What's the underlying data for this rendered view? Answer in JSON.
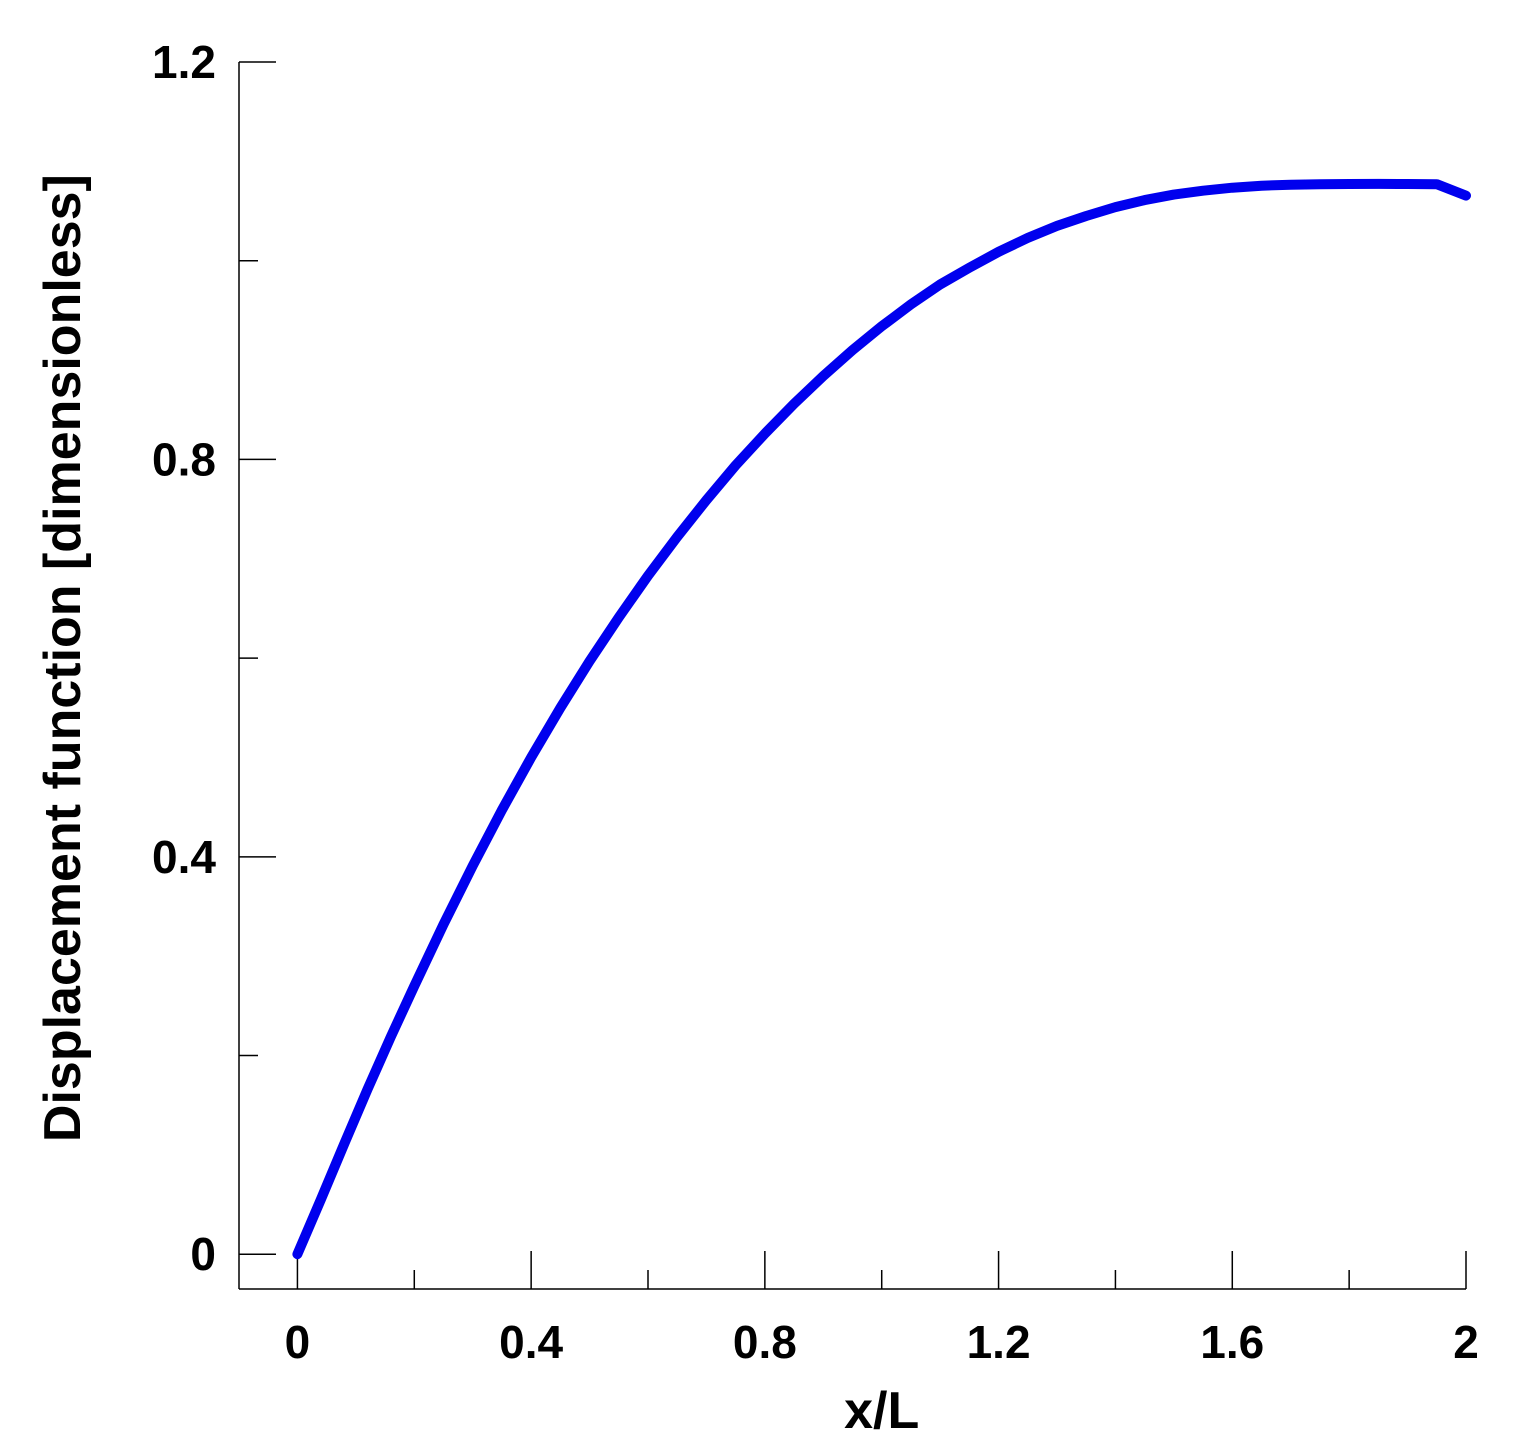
{
  "chart_data": {
    "type": "line",
    "title": "",
    "xlabel": "x/L",
    "ylabel": "Displacement function [dimensionless]",
    "xlim": [
      -0.1,
      2
    ],
    "ylim": [
      -0.035,
      1.2
    ],
    "x_ticks": [
      0,
      0.4,
      0.8,
      1.2,
      1.6,
      2
    ],
    "x_tick_labels": [
      "0",
      "0.4",
      "0.8",
      "1.2",
      "1.6",
      "2"
    ],
    "x_minor_ticks": [
      0.2,
      0.6,
      1.0,
      1.4,
      1.8
    ],
    "y_ticks": [
      0,
      0.4,
      0.8,
      1.2
    ],
    "y_tick_labels": [
      "0",
      "0.4",
      "0.8",
      "1.2"
    ],
    "y_minor_ticks": [
      0.2,
      0.6,
      1.0
    ],
    "grid": false,
    "legend": "none",
    "colors": {
      "series": "#0000ee",
      "axis": "#000000",
      "background": "#ffffff"
    },
    "series": [
      {
        "x": [
          0,
          0.04,
          0.08,
          0.12,
          0.16,
          0.2,
          0.25,
          0.3,
          0.35,
          0.4,
          0.45,
          0.5,
          0.55,
          0.6,
          0.65,
          0.7,
          0.75,
          0.8,
          0.85,
          0.9,
          0.95,
          1.0,
          1.05,
          1.1,
          1.15,
          1.2,
          1.25,
          1.3,
          1.35,
          1.4,
          1.45,
          1.5,
          1.55,
          1.6,
          1.65,
          1.7,
          1.75,
          1.8,
          1.85,
          1.9,
          1.95,
          2.0
        ],
        "y": [
          0,
          0.055,
          0.111,
          0.166,
          0.219,
          0.27,
          0.332,
          0.391,
          0.447,
          0.5,
          0.55,
          0.597,
          0.641,
          0.683,
          0.722,
          0.759,
          0.794,
          0.826,
          0.856,
          0.884,
          0.91,
          0.934,
          0.956,
          0.976,
          0.993,
          1.009,
          1.023,
          1.035,
          1.045,
          1.054,
          1.061,
          1.0665,
          1.0705,
          1.0735,
          1.0755,
          1.0765,
          1.077,
          1.0772,
          1.0773,
          1.0772,
          1.077,
          1.0655
        ]
      }
    ]
  }
}
